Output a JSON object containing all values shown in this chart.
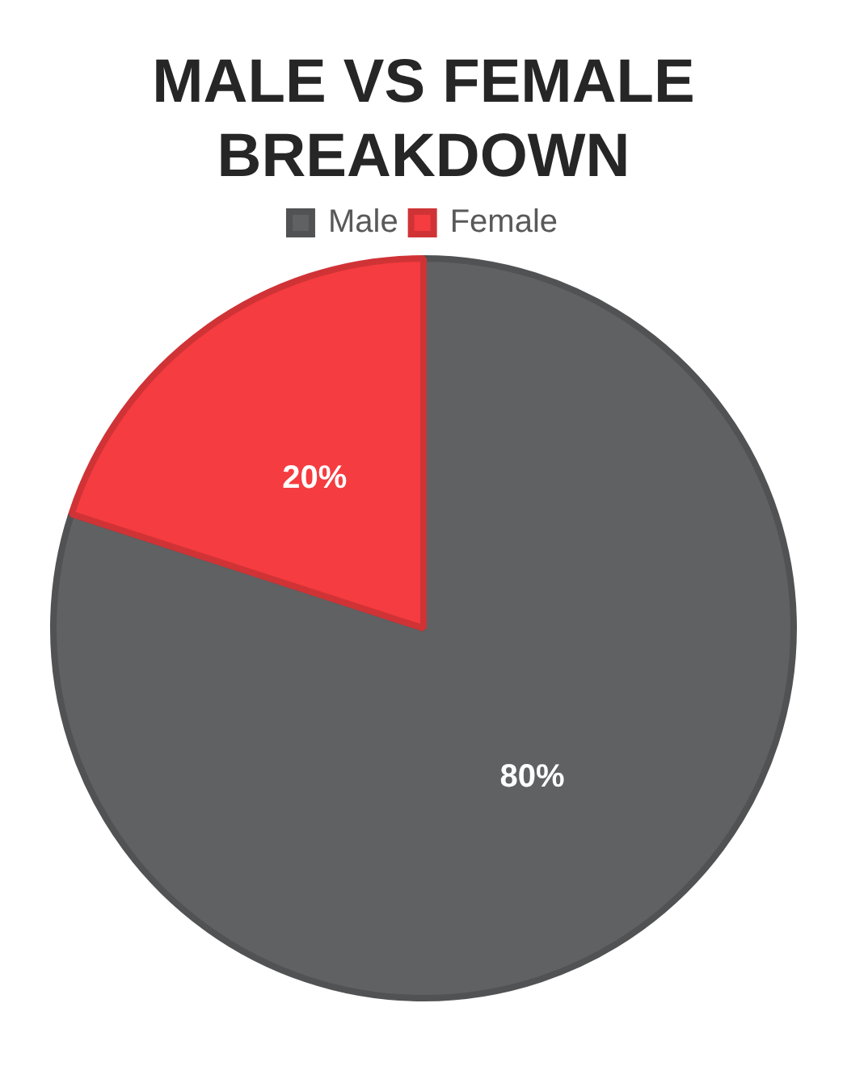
{
  "chart_data": {
    "type": "pie",
    "title": "MALE VS FEMALE BREAKDOWN",
    "categories": [
      "Male",
      "Female"
    ],
    "values": [
      80,
      20
    ],
    "colors": [
      "#5f6163",
      "#f53c40"
    ],
    "value_labels": [
      "80%",
      "20%"
    ],
    "legend": "top"
  }
}
